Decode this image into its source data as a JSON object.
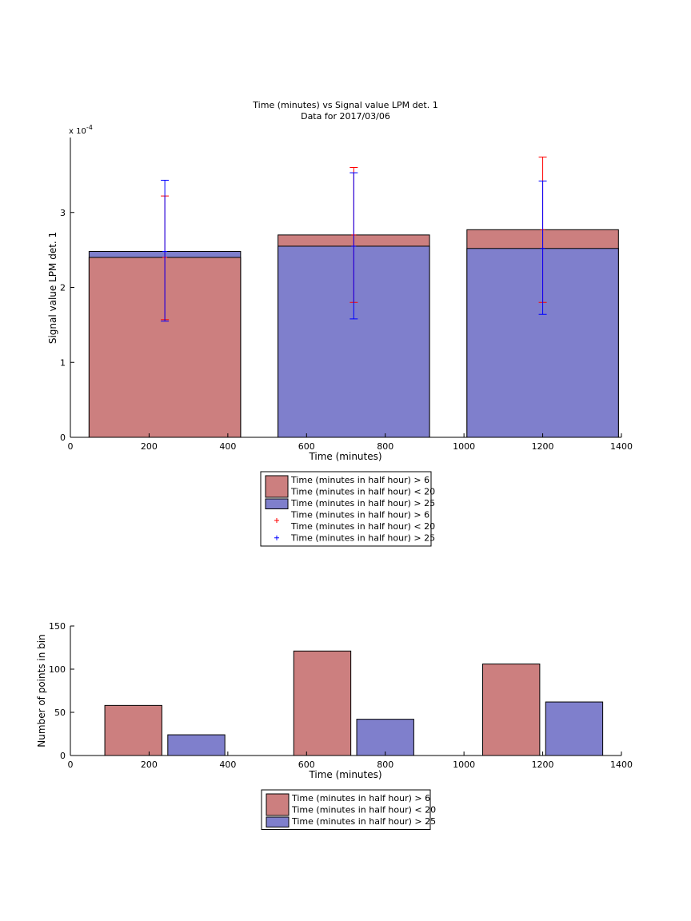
{
  "chart_data": [
    {
      "type": "bar",
      "title": "Time (minutes) vs Signal value LPM det. 1",
      "subtitle": "Data for 2017/03/06",
      "xlabel": "Time (minutes)",
      "ylabel": "Signal value LPM det. 1",
      "y_exponent_label": "x 10",
      "y_exponent_power": "-4",
      "xlim": [
        0,
        1400
      ],
      "ylim": [
        0,
        4
      ],
      "y_scale": 0.0001,
      "xticks": [
        0,
        200,
        400,
        600,
        800,
        1000,
        1200,
        1400
      ],
      "yticks": [
        0,
        1,
        2,
        3
      ],
      "grid": false,
      "legend_position": "below",
      "categories": [
        240,
        720,
        1200
      ],
      "bar_width": 385,
      "series": [
        {
          "name": "Time (minutes in half hour) > 6\nTime (minutes in half hour) < 20",
          "color": "#cc7f7f",
          "values": [
            2.4,
            2.7,
            2.77
          ],
          "err_low": [
            1.57,
            1.8,
            1.8
          ],
          "err_high": [
            3.22,
            3.6,
            3.74
          ],
          "err_color": "#ff0000"
        },
        {
          "name": "Time (minutes in half hour) > 25",
          "color": "#7f7fcc",
          "values": [
            2.48,
            2.55,
            2.52
          ],
          "err_low": [
            1.55,
            1.58,
            1.64
          ],
          "err_high": [
            3.43,
            3.53,
            3.42
          ],
          "err_color": "#0000ff"
        }
      ],
      "legend": [
        {
          "kind": "patch",
          "color": "#cc7f7f",
          "lines": [
            "Time (minutes in half hour) > 6",
            "Time (minutes in half hour) < 20"
          ]
        },
        {
          "kind": "patch",
          "color": "#7f7fcc",
          "lines": [
            "Time (minutes in half hour) > 25"
          ]
        },
        {
          "kind": "marker",
          "color": "#ff0000",
          "lines": [
            "Time (minutes in half hour) > 6",
            "Time (minutes in half hour) < 20"
          ]
        },
        {
          "kind": "marker",
          "color": "#0000ff",
          "lines": [
            "Time (minutes in half hour) > 25"
          ]
        }
      ]
    },
    {
      "type": "bar",
      "xlabel": "Time (minutes)",
      "ylabel": "Number of points in bin",
      "xlim": [
        0,
        1400
      ],
      "ylim": [
        0,
        150
      ],
      "xticks": [
        0,
        200,
        400,
        600,
        800,
        1000,
        1200,
        1400
      ],
      "yticks": [
        0,
        50,
        100,
        150
      ],
      "grid": false,
      "legend_position": "below",
      "bar_width": 145,
      "series": [
        {
          "name": "Time (minutes in half hour) > 6\nTime (minutes in half hour) < 20",
          "color": "#cc7f7f",
          "x": [
            160,
            640,
            1120
          ],
          "values": [
            58,
            121,
            106
          ]
        },
        {
          "name": "Time (minutes in half hour) > 25",
          "color": "#7f7fcc",
          "x": [
            320,
            800,
            1280
          ],
          "values": [
            24,
            42,
            62
          ]
        }
      ],
      "legend": [
        {
          "kind": "patch",
          "color": "#cc7f7f",
          "lines": [
            "Time (minutes in half hour) > 6",
            "Time (minutes in half hour) < 20"
          ]
        },
        {
          "kind": "patch",
          "color": "#7f7fcc",
          "lines": [
            "Time (minutes in half hour) > 25"
          ]
        }
      ]
    }
  ]
}
